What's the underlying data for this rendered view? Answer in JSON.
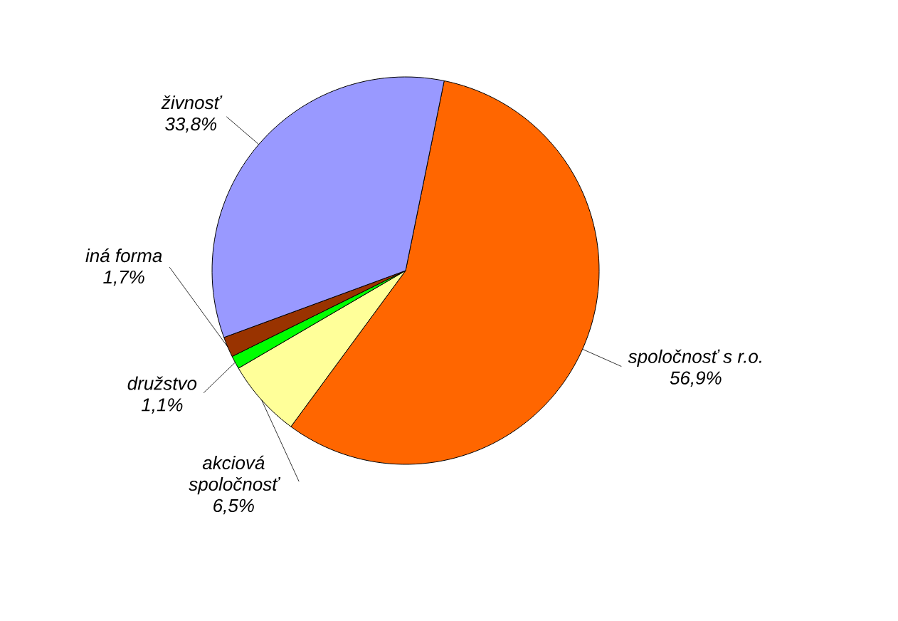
{
  "chart_data": {
    "type": "pie",
    "categories": [
      "spoločnosť s r.o.",
      "akciová spoločnosť",
      "družstvo",
      "iná forma",
      "živnosť"
    ],
    "values": [
      56.9,
      6.5,
      1.1,
      1.7,
      33.8
    ],
    "colors": [
      "#ff6600",
      "#ffff99",
      "#00ff00",
      "#993300",
      "#9999ff"
    ],
    "value_labels": [
      "56,9%",
      "6,5%",
      "1,1%",
      "1,7%",
      "33,8%"
    ]
  }
}
